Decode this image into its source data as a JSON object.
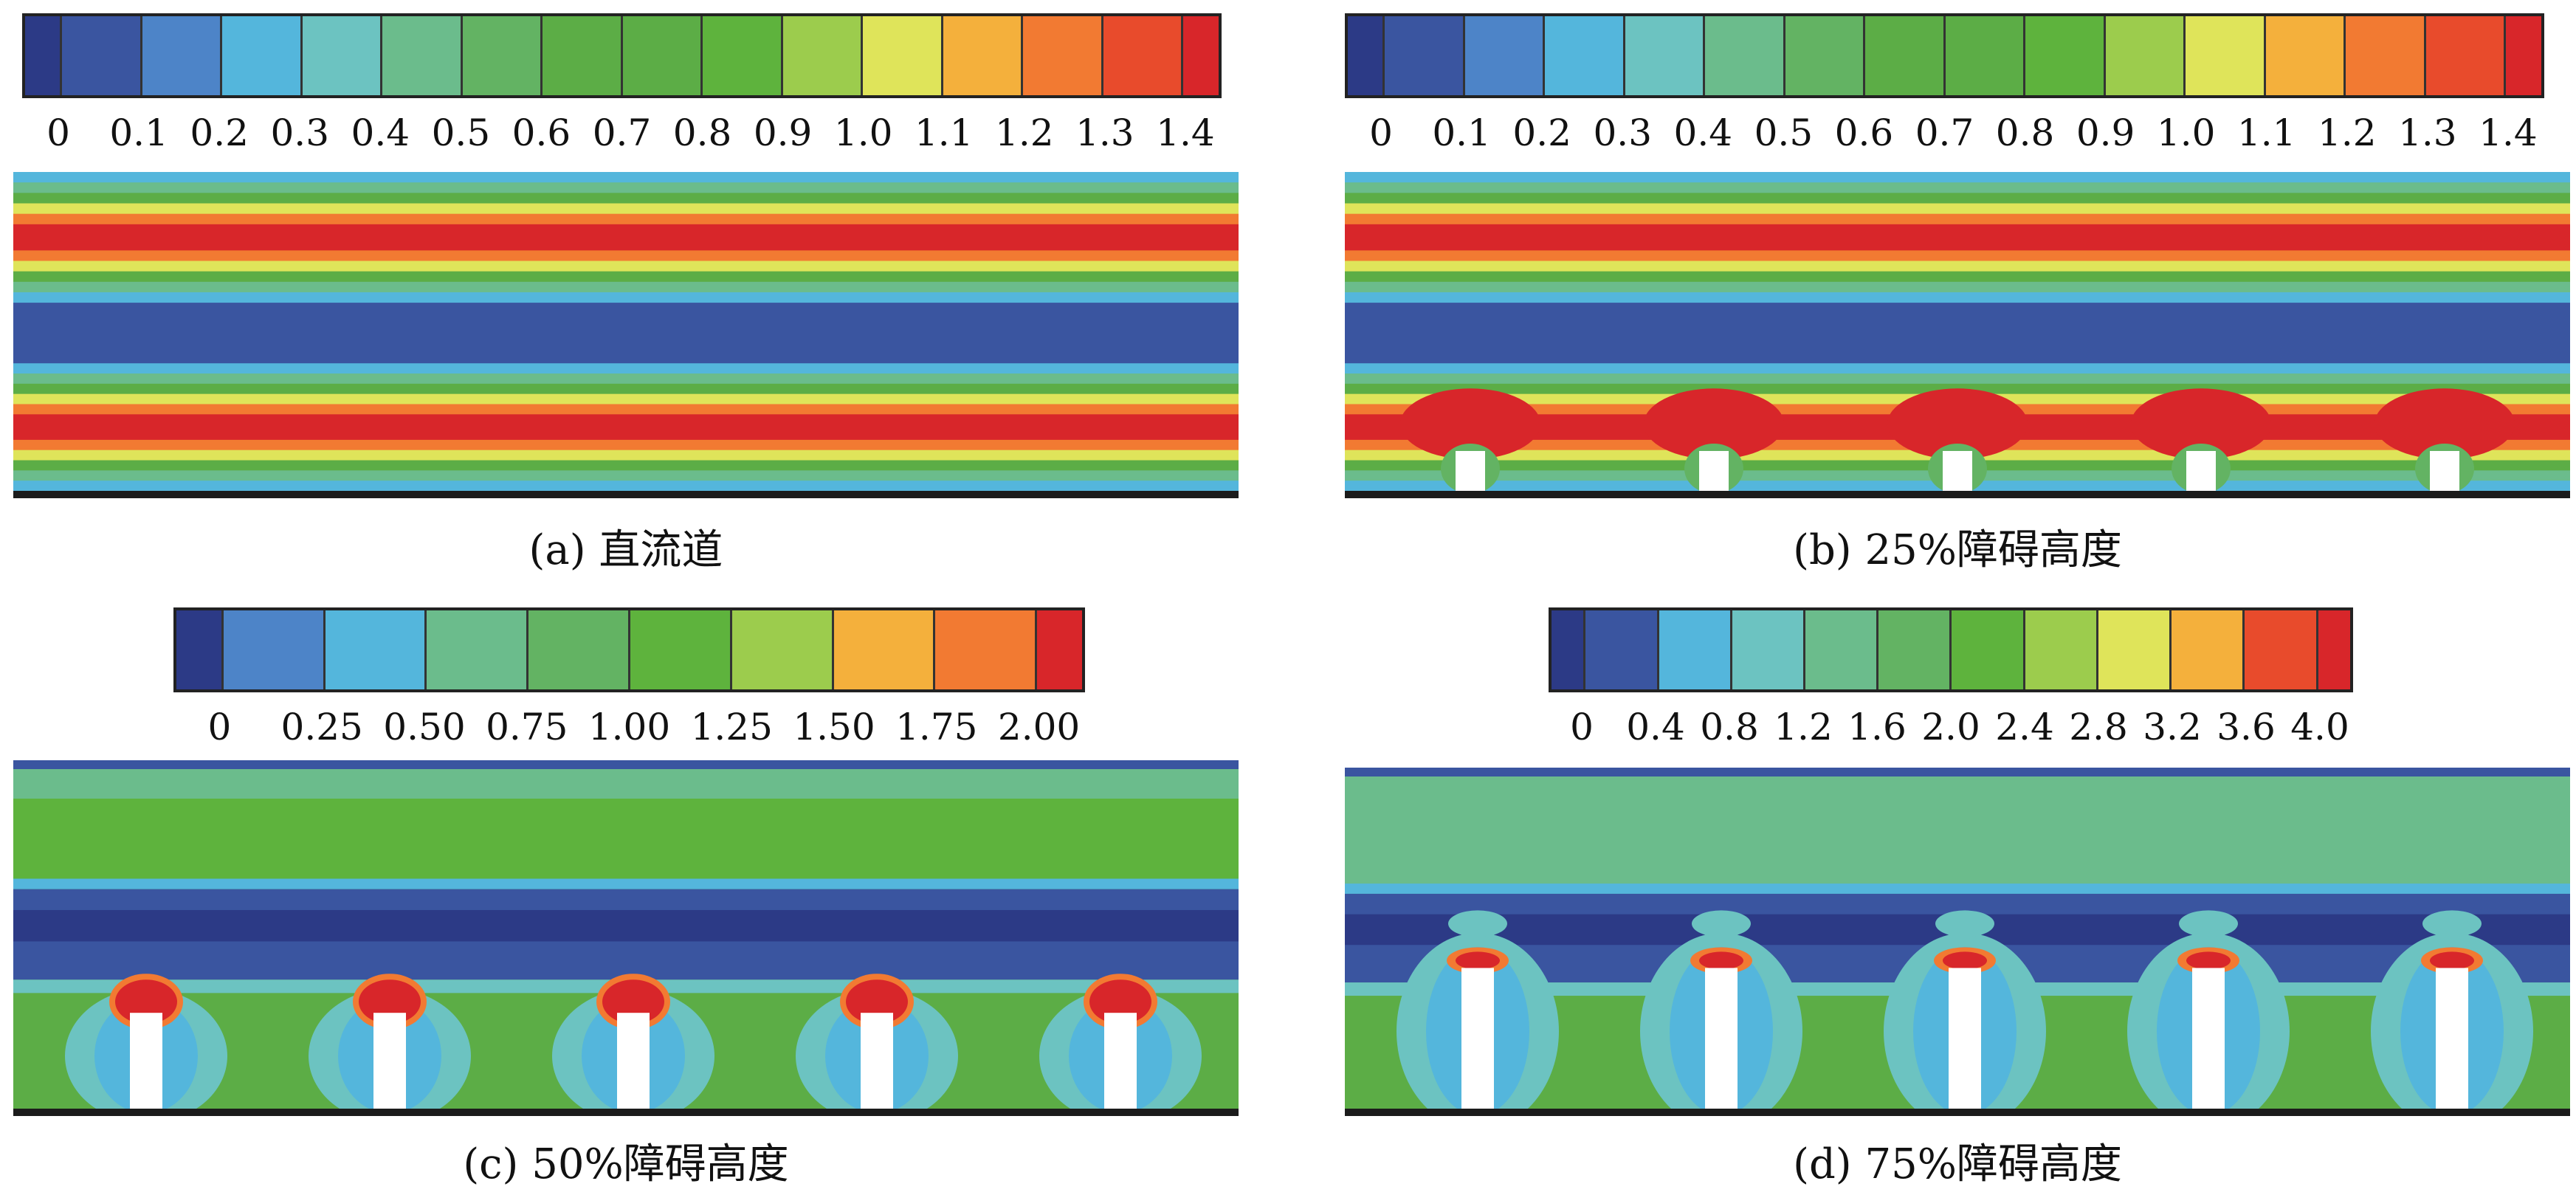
{
  "colormap": [
    "#2c3a86",
    "#3a55a0",
    "#4d84c8",
    "#54b6dc",
    "#6cc3c1",
    "#6bbc8c",
    "#63b363",
    "#5cad46",
    "#5eb33d",
    "#9ccc4d",
    "#dfe45a",
    "#f4b03c",
    "#f27a32",
    "#e84b2c",
    "#d8262a"
  ],
  "panels": [
    {
      "id": "a",
      "caption": "(a) 直流道",
      "ticks": [
        "0",
        "0.1",
        "0.2",
        "0.3",
        "0.4",
        "0.5",
        "0.6",
        "0.7",
        "0.8",
        "0.9",
        "1.0",
        "1.1",
        "1.2",
        "1.3",
        "1.4"
      ],
      "obstacles": 0,
      "obstacle_height_pct": 0
    },
    {
      "id": "b",
      "caption": "(b) 25%障碍高度",
      "ticks": [
        "0",
        "0.1",
        "0.2",
        "0.3",
        "0.4",
        "0.5",
        "0.6",
        "0.7",
        "0.8",
        "0.9",
        "1.0",
        "1.1",
        "1.2",
        "1.3",
        "1.4"
      ],
      "obstacles": 5,
      "obstacle_height_pct": 25
    },
    {
      "id": "c",
      "caption": "(c) 50%障碍高度",
      "ticks": [
        "0",
        "0.25",
        "0.50",
        "0.75",
        "1.00",
        "1.25",
        "1.50",
        "1.75",
        "2.00"
      ],
      "obstacles": 5,
      "obstacle_height_pct": 50
    },
    {
      "id": "d",
      "caption": "(d) 75%障碍高度",
      "ticks": [
        "0",
        "0.4",
        "0.8",
        "1.2",
        "1.6",
        "2.0",
        "2.4",
        "2.8",
        "3.2",
        "3.6",
        "4.0"
      ],
      "obstacles": 5,
      "obstacle_height_pct": 75
    }
  ]
}
